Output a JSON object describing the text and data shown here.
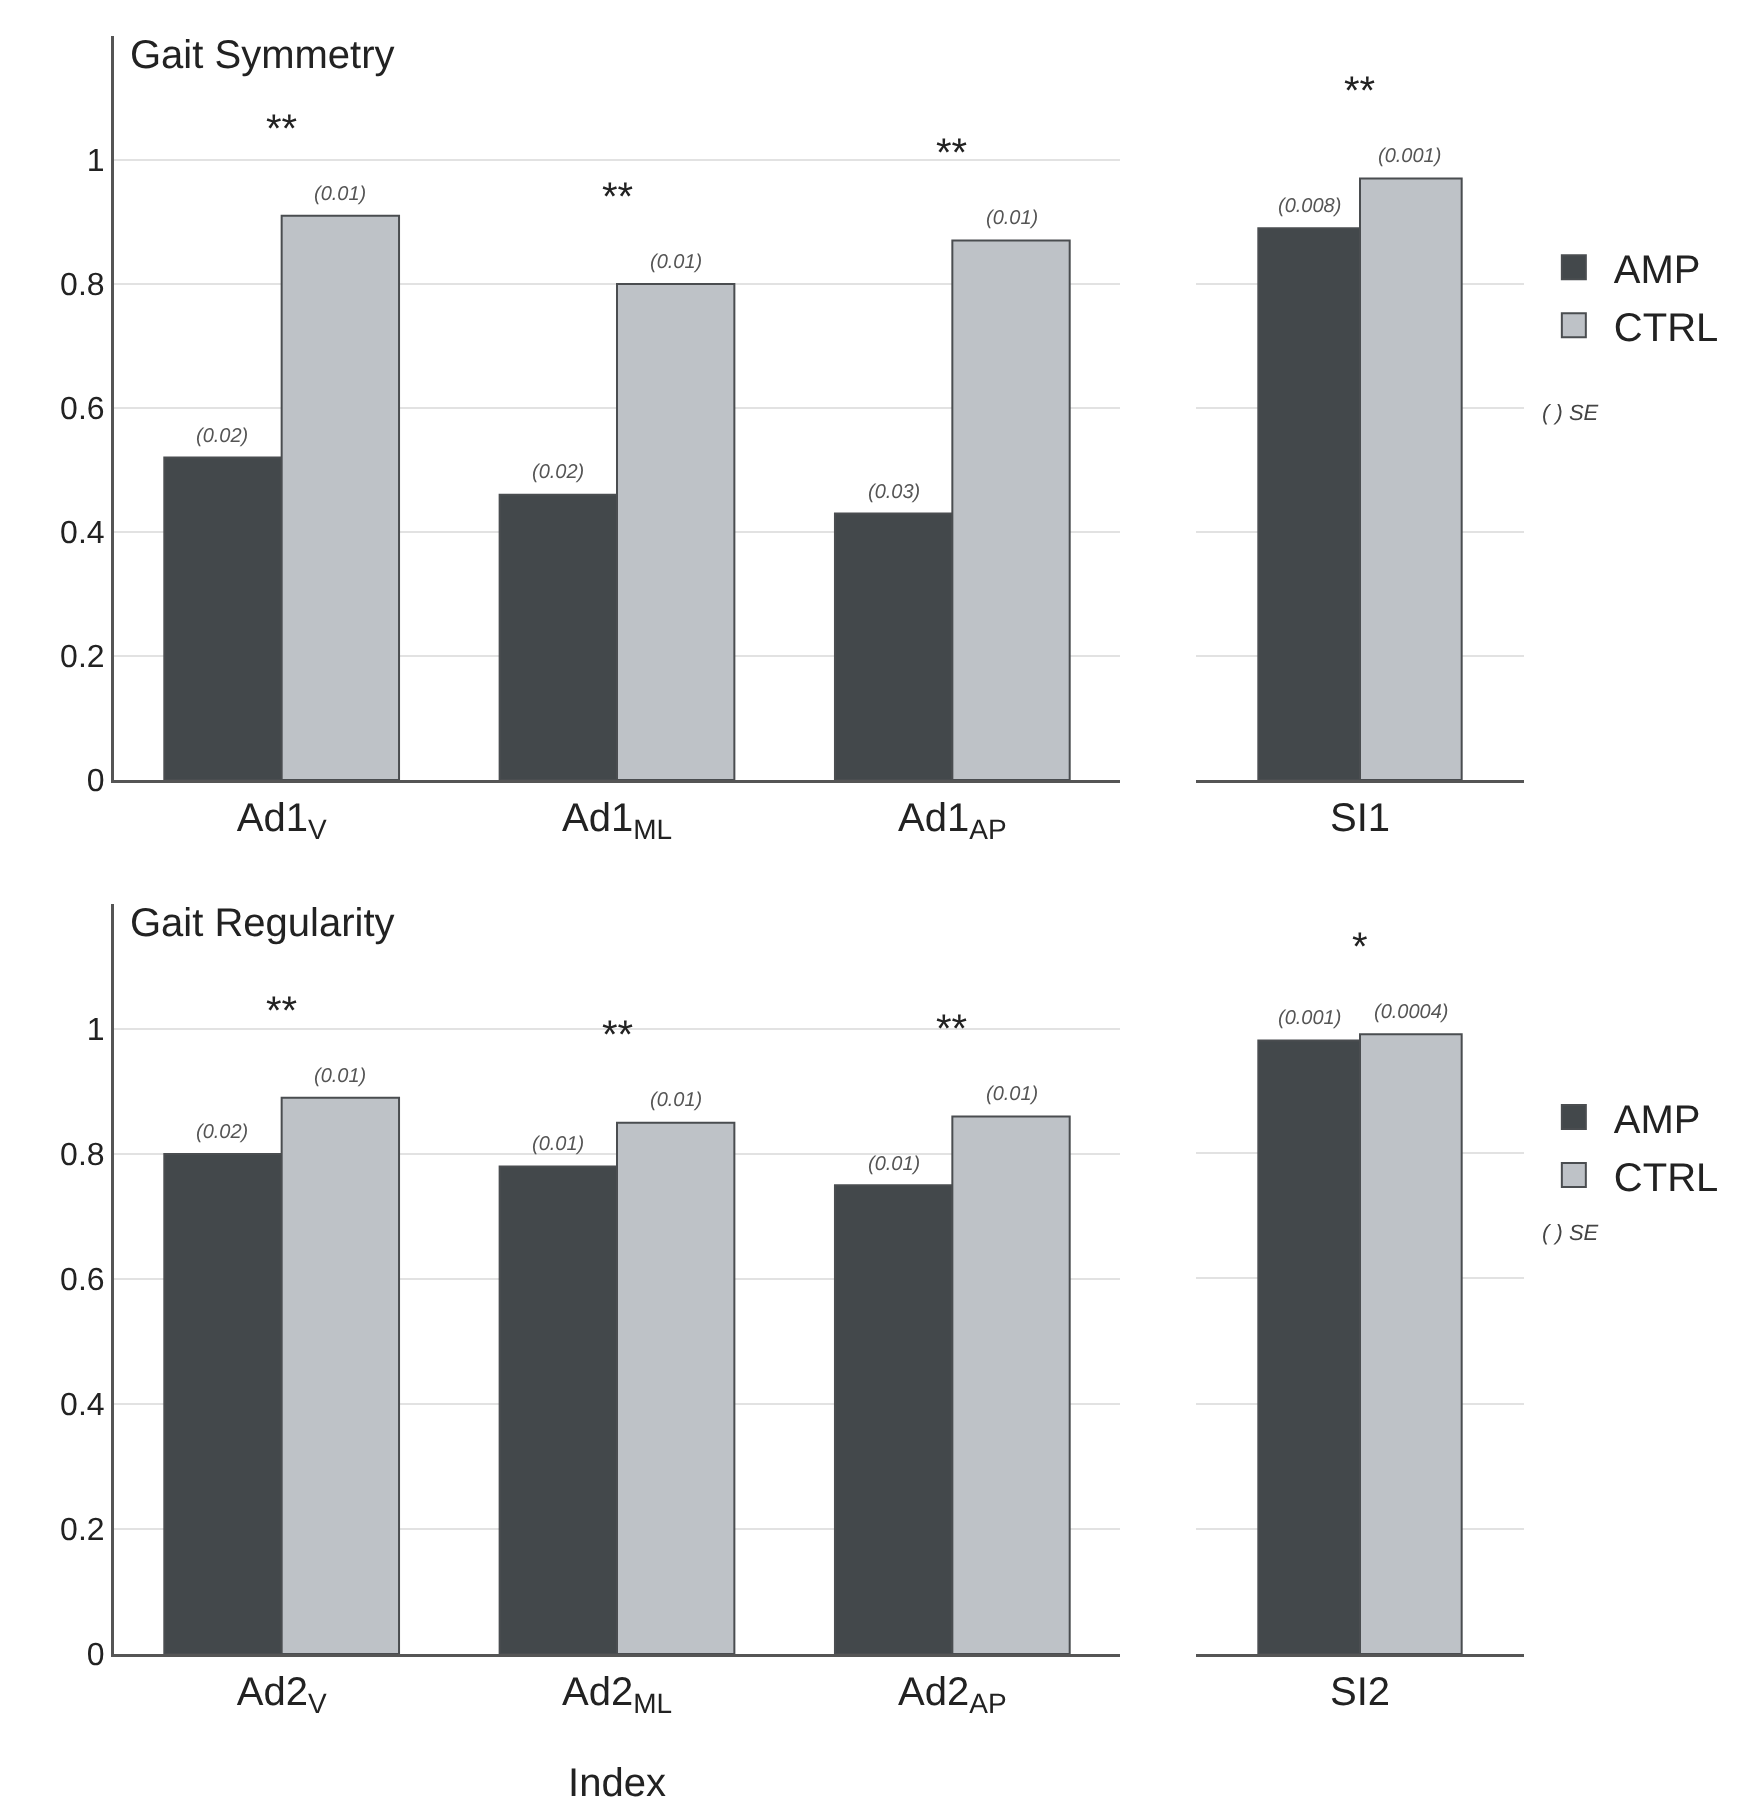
{
  "chart_data": [
    {
      "type": "bar",
      "title": "Gait Symmetry",
      "categories": [
        "Ad1$_{V}$",
        "Ad1$_{ML}$",
        "Ad1$_{AP}$"
      ],
      "ylim": [
        0,
        1.2
      ],
      "yticks": [
        0,
        0.2,
        0.4,
        0.6,
        0.8,
        1
      ],
      "grid": "y",
      "legend": false,
      "series": [
        {
          "color": "#43484b",
          "values": [
            0.52,
            0.46,
            0.43
          ]
        },
        {
          "color": "#bec2c7",
          "values": [
            0.91,
            0.8,
            0.87
          ]
        }
      ],
      "annotations": [
        {
          "text": "(0.02)",
          "x": "Ad1$_{V}$",
          "y": 0.52
        },
        {
          "text": "(0.01)",
          "x": "Ad1$_{V}$",
          "y": 0.91
        },
        "**",
        {
          "text": "(0.02)",
          "x": "Ad1$_{ML}$",
          "y": 0.46
        },
        {
          "text": "(0.01)",
          "x": "Ad1$_{ML}$",
          "y": 0.8
        },
        "**",
        {
          "text": "(0.03)",
          "x": "Ad1$_{AP}$",
          "y": 0.43
        },
        {
          "text": "(0.01)",
          "x": "Ad1$_{AP}$",
          "y": 0.87
        },
        "**"
      ]
    },
    {
      "type": "bar",
      "categories": [
        "SI1"
      ],
      "ylim": [
        0,
        1
      ],
      "yticks": [
        0,
        0.2,
        0.4,
        0.6,
        0.8,
        1
      ],
      "grid": "y",
      "legend": "right",
      "tick_labels": "x",
      "series": [
        {
          "name": "AMP",
          "color": "#43484b",
          "values": [
            0.89
          ]
        },
        {
          "name": "CTRL",
          "color": "#bec2c7",
          "values": [
            0.97
          ]
        }
      ],
      "annotations": [
        {
          "text": "(0.008)",
          "x": "SI1",
          "y": 0.89
        },
        {
          "text": "(0.001)",
          "x": "SI1",
          "y": 0.97
        },
        "**",
        "( ) SE"
      ]
    },
    {
      "type": "bar",
      "title": "Gait Regularity",
      "xlabel": "Index",
      "categories": [
        "Ad2$_{V}$",
        "Ad2$_{ML}$",
        "Ad2$_{AP}$"
      ],
      "ylim": [
        0,
        1.2
      ],
      "yticks": [
        0,
        0.2,
        0.4,
        0.6,
        0.8,
        1
      ],
      "grid": "y",
      "legend": false,
      "series": [
        {
          "color": "#43484b",
          "values": [
            0.8,
            0.78,
            0.75
          ]
        },
        {
          "color": "#bec2c7",
          "values": [
            0.89,
            0.85,
            0.86
          ]
        }
      ],
      "annotations": [
        {
          "text": "(0.02)",
          "x": "Ad2$_{V}$",
          "y": 0.8
        },
        {
          "text": "(0.01)",
          "x": "Ad2$_{V}$",
          "y": 0.89
        },
        "**",
        {
          "text": "(0.01)",
          "x": "Ad2$_{ML}$",
          "y": 0.78
        },
        {
          "text": "(0.01)",
          "x": "Ad2$_{ML}$",
          "y": 0.85
        },
        "**",
        {
          "text": "(0.01)",
          "x": "Ad2$_{AP}$",
          "y": 0.75
        },
        {
          "text": "(0.01)",
          "x": "Ad2$_{AP}$",
          "y": 0.86
        },
        "**"
      ]
    },
    {
      "type": "bar",
      "categories": [
        "SI2"
      ],
      "ylim": [
        0,
        1
      ],
      "yticks": [
        0,
        0.2,
        0.4,
        0.6,
        0.8,
        1
      ],
      "grid": "y",
      "legend": "right",
      "tick_labels": "x",
      "series": [
        {
          "name": "AMP",
          "color": "#43484b",
          "values": [
            0.98
          ]
        },
        {
          "name": "CTRL",
          "color": "#bec2c7",
          "values": [
            0.99
          ]
        }
      ],
      "annotations": [
        {
          "text": "(0.001)",
          "x": "SI2",
          "y": 0.98
        },
        {
          "text": "(0.0004)",
          "x": "SI2",
          "y": 0.99
        },
        "*",
        "( ) SE"
      ]
    }
  ]
}
